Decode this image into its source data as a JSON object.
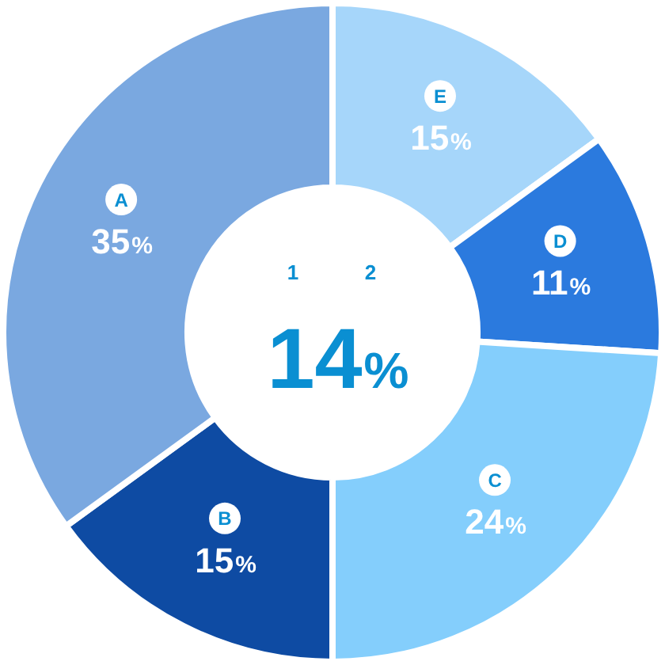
{
  "chart_data": {
    "type": "donut",
    "categories": [
      "E",
      "D",
      "C",
      "B",
      "A"
    ],
    "values": [
      15,
      11,
      24,
      15,
      35
    ],
    "value_labels": [
      "15%",
      "11%",
      "24%",
      "15%",
      "35%"
    ],
    "colors": [
      "#a6d6fa",
      "#2b7ade",
      "#84cefc",
      "#0e4ba3",
      "#7aa8e0"
    ],
    "annotations": [
      "1",
      "2",
      "14%"
    ],
    "legend": false
  }
}
